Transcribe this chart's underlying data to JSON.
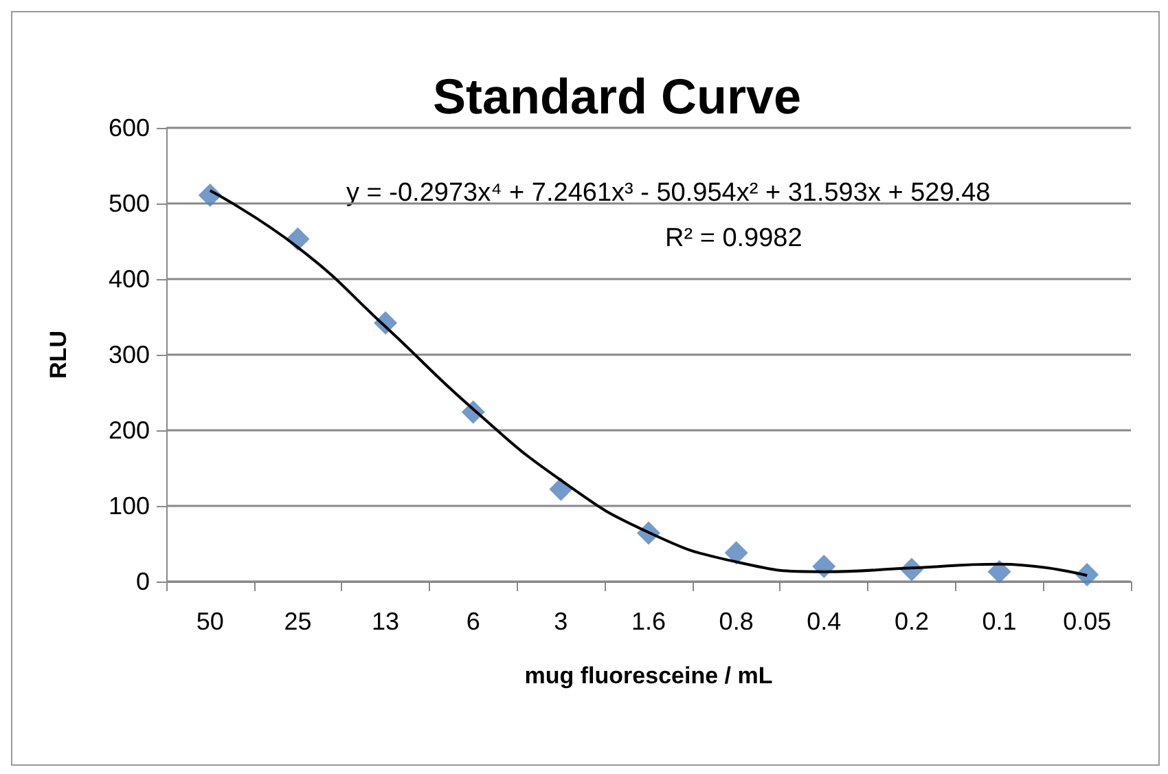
{
  "chart_data": {
    "type": "scatter",
    "title": "Standard Curve",
    "xlabel": "mug fluoresceine / mL",
    "ylabel": "RLU",
    "categories": [
      "50",
      "25",
      "13",
      "6",
      "3",
      "1.6",
      "0.8",
      "0.4",
      "0.2",
      "0.1",
      "0.05"
    ],
    "series": [
      {
        "marker": "diamond",
        "color": "#4f81bd",
        "values": [
          511,
          453,
          342,
          224,
          122,
          64,
          38,
          20,
          16,
          13,
          9
        ]
      },
      {
        "type": "line",
        "marker": "none",
        "color": "#000000",
        "x": [
          "50",
          "25",
          "13",
          "6",
          "3",
          "1.6",
          "0.8",
          "0.4",
          "0.2",
          "0.1",
          "0.05"
        ],
        "values": [
          517,
          442,
          337,
          228,
          134,
          65,
          26,
          13,
          18,
          23,
          8
        ]
      }
    ],
    "ylim": [
      0,
      600
    ],
    "yticks": [
      0,
      100,
      200,
      300,
      400,
      500,
      600
    ],
    "grid": "y",
    "annotations": [
      "y = -0.2973x⁴ + 7.2461x³ - 50.954x² + 31.593x + 529.48",
      "R² = 0.9982"
    ]
  }
}
